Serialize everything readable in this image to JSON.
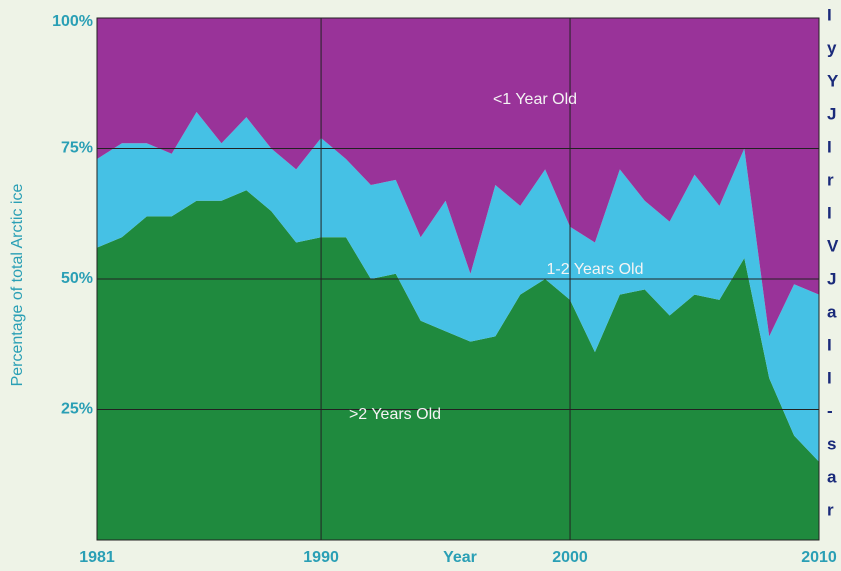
{
  "chart_data": {
    "type": "stacked_area",
    "x_label": "Year",
    "y_label": "Percentage of total Arctic ice",
    "x": [
      1981,
      1982,
      1983,
      1984,
      1985,
      1986,
      1987,
      1988,
      1989,
      1990,
      1991,
      1992,
      1993,
      1994,
      1995,
      1996,
      1997,
      1998,
      1999,
      2000,
      2001,
      2002,
      2003,
      2004,
      2005,
      2006,
      2007,
      2008,
      2009,
      2010
    ],
    "series": [
      {
        "name": ">2 Years Old",
        "color": "#1f8a3e",
        "values": [
          56,
          58,
          62,
          62,
          65,
          65,
          67,
          63,
          57,
          58,
          58,
          50,
          51,
          42,
          40,
          38,
          39,
          47,
          50,
          46,
          36,
          47,
          48,
          43,
          47,
          46,
          54,
          31,
          20,
          15
        ]
      },
      {
        "name": "1-2 Years Old",
        "color": "#45c1e5",
        "values": [
          17,
          18,
          14,
          12,
          17,
          11,
          14,
          12,
          14,
          19,
          15,
          18,
          18,
          16,
          25,
          13,
          29,
          17,
          21,
          14,
          21,
          24,
          17,
          18,
          23,
          18,
          21,
          8,
          29,
          32
        ]
      },
      {
        "name": "<1 Year Old",
        "color": "#993399",
        "values": [
          27,
          24,
          24,
          26,
          18,
          24,
          19,
          25,
          29,
          23,
          27,
          32,
          31,
          42,
          35,
          49,
          32,
          36,
          29,
          40,
          43,
          29,
          35,
          39,
          30,
          36,
          25,
          61,
          51,
          53
        ]
      }
    ],
    "xlim": [
      1981,
      2010
    ],
    "xticks": [
      1981,
      1990,
      2000,
      2010
    ],
    "ylim": [
      0,
      100
    ],
    "yticks": [
      {
        "value": 25,
        "label": "25%"
      },
      {
        "value": 50,
        "label": "50%"
      },
      {
        "value": 75,
        "label": "75%"
      },
      {
        "value": 100,
        "label": "100%"
      }
    ],
    "grid": true,
    "side_text": [
      "I",
      "y",
      "Y",
      "J",
      "I",
      "r",
      "I",
      "V",
      "J",
      "a",
      "I",
      "I",
      "-",
      "s",
      "a",
      "r"
    ]
  }
}
